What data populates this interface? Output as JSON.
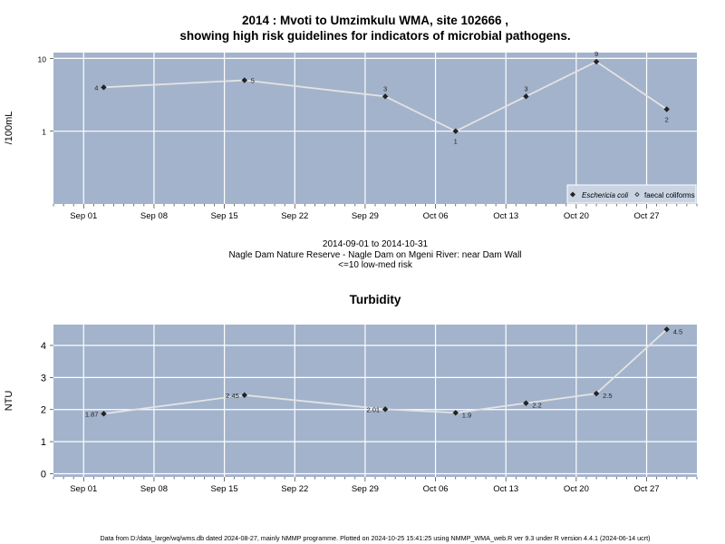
{
  "top_chart": {
    "title_line1": "2014 : Mvoti to Umzimkulu WMA, site 102666 ,",
    "title_line2": "showing high risk guidelines for indicators of microbial pathogens.",
    "ylabel": "/100mL",
    "subtitle_line1": "2014-09-01 to 2014-10-31",
    "subtitle_line2": "Nagle Dam Nature Reserve - Nagle Dam on Mgeni River: near Dam Wall",
    "subtitle_line3": "<=10 low-med risk",
    "legend": {
      "ecoli": "Eschericia coli",
      "faecal": "faecal coliforms"
    }
  },
  "bottom_chart": {
    "title": "Turbidity",
    "ylabel": "NTU"
  },
  "footer": "Data from D:/data_large/wq/wms.db dated 2024-08-27, mainly NMMP programme. Plotted on 2024-10-25 15:41:25 using NMMP_WMA_web.R ver 9.3 under R version 4.4.1 (2024-06-14 ucrt)",
  "colors": {
    "panel": "#a3b3cc",
    "grid": "#ffffff",
    "line": "#e0e0e0",
    "point": "#222222"
  },
  "chart_data": [
    {
      "type": "line",
      "title": "2014 : Mvoti to Umzimkulu WMA, site 102666 , showing high risk guidelines for indicators of microbial pathogens.",
      "ylabel": "/100mL",
      "y_scale": "log",
      "ylim": [
        0.1,
        12
      ],
      "x_range": [
        "2014-08-29",
        "2014-11-01"
      ],
      "x_ticks": [
        {
          "date": "2014-09-01",
          "label": "Sep 01"
        },
        {
          "date": "2014-09-08",
          "label": "Sep 08"
        },
        {
          "date": "2014-09-15",
          "label": "Sep 15"
        },
        {
          "date": "2014-09-22",
          "label": "Sep 22"
        },
        {
          "date": "2014-09-29",
          "label": "Sep 29"
        },
        {
          "date": "2014-10-06",
          "label": "Oct 06"
        },
        {
          "date": "2014-10-13",
          "label": "Oct 13"
        },
        {
          "date": "2014-10-20",
          "label": "Oct 20"
        },
        {
          "date": "2014-10-27",
          "label": "Oct 27"
        }
      ],
      "y_ticks": [
        {
          "value": 1,
          "label": "1"
        },
        {
          "value": 10,
          "label": "10"
        }
      ],
      "grid": true,
      "legend_position": "bottom-right",
      "series": [
        {
          "name": "Eschericia coli",
          "points": [
            {
              "x": "2014-09-03",
              "y": 4,
              "label": "4"
            },
            {
              "x": "2014-09-17",
              "y": 5,
              "label": "5"
            },
            {
              "x": "2014-10-01",
              "y": 3,
              "label": "3"
            },
            {
              "x": "2014-10-08",
              "y": 1,
              "label": "1"
            },
            {
              "x": "2014-10-15",
              "y": 3,
              "label": "3"
            },
            {
              "x": "2014-10-22",
              "y": 9,
              "label": "9"
            },
            {
              "x": "2014-10-29",
              "y": 2,
              "label": "2"
            }
          ]
        }
      ]
    },
    {
      "type": "line",
      "title": "Turbidity",
      "ylabel": "NTU",
      "ylim": [
        -0.1,
        4.65
      ],
      "x_range": [
        "2014-08-29",
        "2014-11-01"
      ],
      "x_ticks": [
        {
          "date": "2014-09-01",
          "label": "Sep 01"
        },
        {
          "date": "2014-09-08",
          "label": "Sep 08"
        },
        {
          "date": "2014-09-15",
          "label": "Sep 15"
        },
        {
          "date": "2014-09-22",
          "label": "Sep 22"
        },
        {
          "date": "2014-09-29",
          "label": "Sep 29"
        },
        {
          "date": "2014-10-06",
          "label": "Oct 06"
        },
        {
          "date": "2014-10-13",
          "label": "Oct 13"
        },
        {
          "date": "2014-10-20",
          "label": "Oct 20"
        },
        {
          "date": "2014-10-27",
          "label": "Oct 27"
        }
      ],
      "y_ticks": [
        {
          "value": 0,
          "label": "0"
        },
        {
          "value": 1,
          "label": "1"
        },
        {
          "value": 2,
          "label": "2"
        },
        {
          "value": 3,
          "label": "3"
        },
        {
          "value": 4,
          "label": "4"
        }
      ],
      "grid": true,
      "series": [
        {
          "points": [
            {
              "x": "2014-09-03",
              "y": 1.87,
              "label": "1.87"
            },
            {
              "x": "2014-09-17",
              "y": 2.45,
              "label": "2.45"
            },
            {
              "x": "2014-10-01",
              "y": 2.01,
              "label": "2.01"
            },
            {
              "x": "2014-10-08",
              "y": 1.9,
              "label": "1.9"
            },
            {
              "x": "2014-10-15",
              "y": 2.2,
              "label": "2.2"
            },
            {
              "x": "2014-10-22",
              "y": 2.5,
              "label": "2.5"
            },
            {
              "x": "2014-10-29",
              "y": 4.5,
              "label": "4.5"
            }
          ]
        }
      ]
    }
  ]
}
